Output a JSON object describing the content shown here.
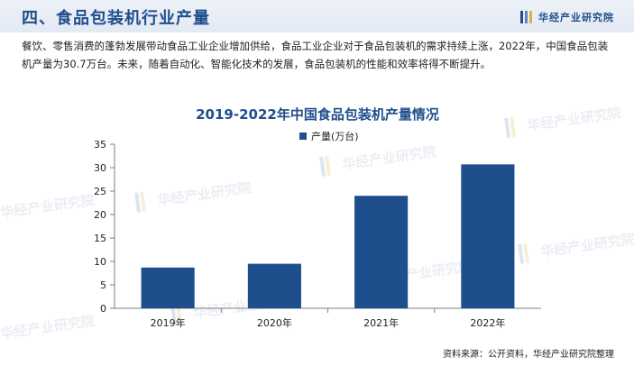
{
  "header": {
    "title": "四、食品包装机行业产量",
    "brand": "华经产业研究院"
  },
  "intro": "餐饮、零售消费的蓬勃发展带动食品工业企业增加供给，食品工业企业对于食品包装机的需求持续上涨，2022年，中国食品包装机产量为30.7万台。未来，随着自动化、智能化技术的发展，食品包装机的性能和效率将得不断提升。",
  "watermark": "华经产业研究院",
  "chart_data": {
    "type": "bar",
    "title": "2019-2022年中国食品包装机产量情况",
    "categories": [
      "2019年",
      "2020年",
      "2021年",
      "2022年"
    ],
    "series": [
      {
        "name": "产量(万台)",
        "values": [
          8.7,
          9.5,
          24.0,
          30.7
        ]
      }
    ],
    "ylim": [
      0,
      35
    ],
    "yticks": [
      0,
      5,
      10,
      15,
      20,
      25,
      30,
      35
    ],
    "grid": false,
    "legend": "top-right",
    "colors": {
      "bar": "#1f4e8c",
      "title": "#1f4e8c"
    }
  },
  "source": "资料来源：公开资料，华经产业研究院整理"
}
